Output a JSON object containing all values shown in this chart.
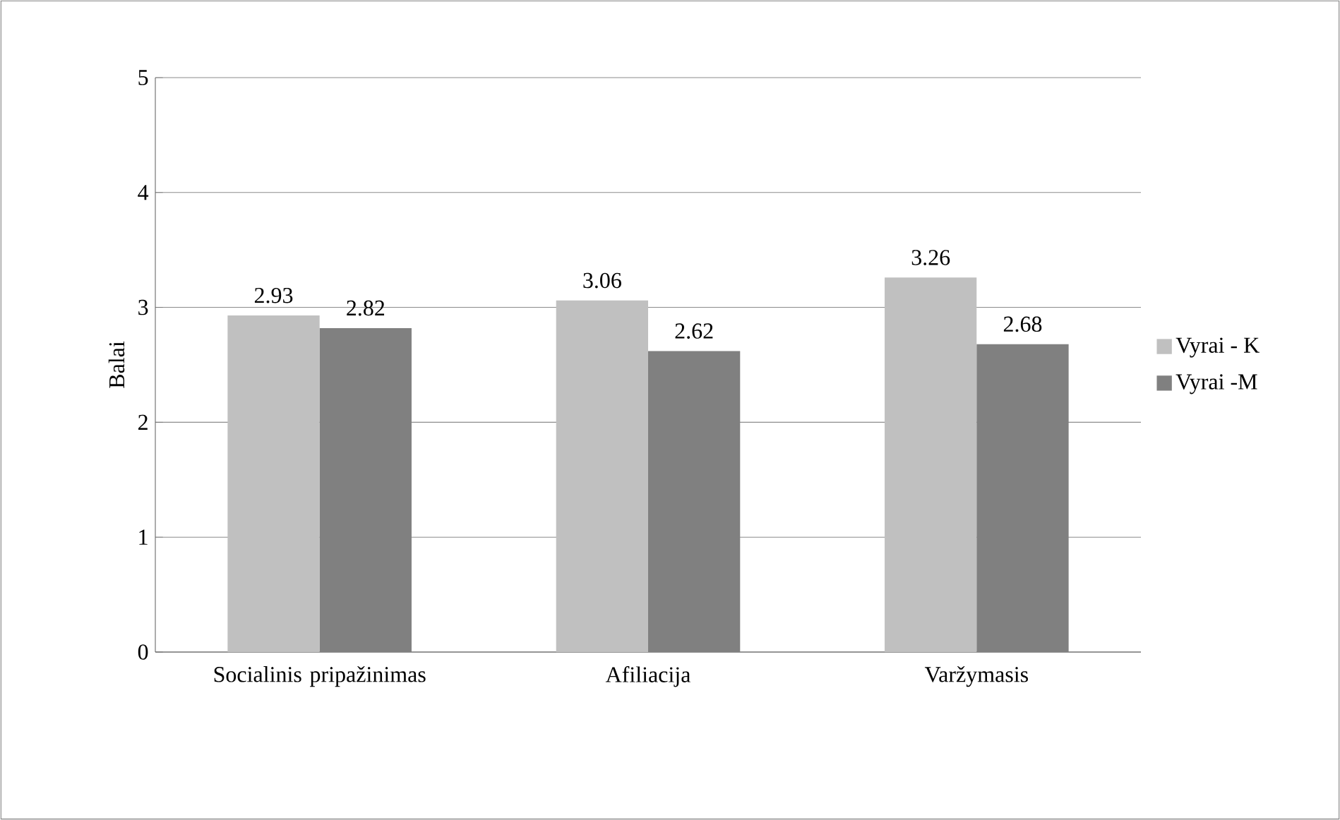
{
  "chart_data": {
    "type": "bar",
    "ylabel": "Balai",
    "categories": [
      "Socialinis pripažinimas",
      "Afiliacija",
      "Varžymasis"
    ],
    "series": [
      {
        "name": "Vyrai - K",
        "color": "#c0c0c0",
        "values": [
          2.93,
          3.06,
          3.26
        ]
      },
      {
        "name": "Vyrai -M",
        "color": "#808080",
        "values": [
          2.82,
          2.62,
          2.68
        ]
      }
    ],
    "ylim": [
      0,
      5
    ],
    "yticks": [
      0,
      1,
      2,
      3,
      4,
      5
    ],
    "grid": "y",
    "legend": "right",
    "data_labels": true
  }
}
